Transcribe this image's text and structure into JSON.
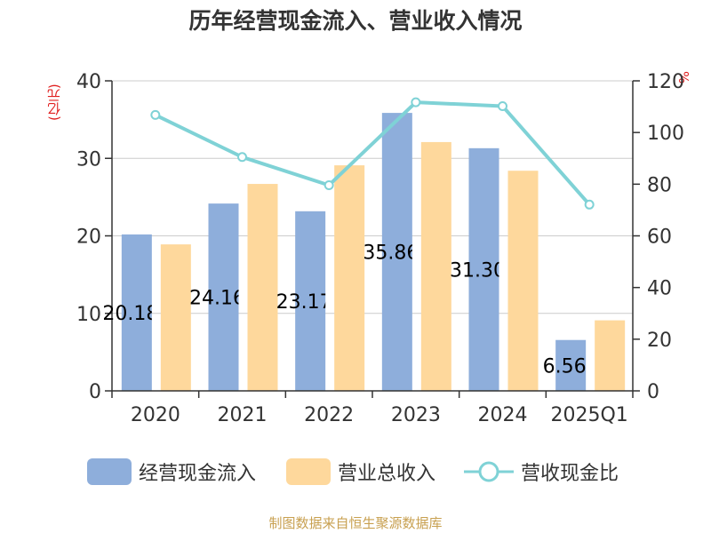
{
  "title": "历年经营现金流入、营业收入情况",
  "left_unit": "(亿元)",
  "right_unit": "%",
  "source": "制图数据来自恒生聚源数据库",
  "colors": {
    "cash_inflow": "#8eaedb",
    "revenue": "#fed89c",
    "ratio": "#7fd2d6",
    "axis": "#333333",
    "grid": "#cccccc"
  },
  "chart_data": {
    "type": "bar",
    "categories": [
      "2020",
      "2021",
      "2022",
      "2023",
      "2024",
      "2025Q1"
    ],
    "y_left": {
      "min": 0,
      "max": 40,
      "ticks": [
        0,
        10,
        20,
        30,
        40
      ]
    },
    "y_right": {
      "min": 0,
      "max": 120,
      "ticks": [
        0,
        20,
        40,
        60,
        80,
        100,
        120
      ]
    },
    "grid": true,
    "legend_position": "bottom",
    "series": [
      {
        "name": "经营现金流入",
        "type": "bar",
        "axis": "left",
        "values": [
          20.184,
          24.169,
          23.172,
          35.863,
          31.308,
          6.564
        ],
        "labels": [
          "20.184",
          "24.169",
          "23.172",
          "35.863",
          "31.308",
          "6.564"
        ]
      },
      {
        "name": "营业总收入",
        "type": "bar",
        "axis": "left",
        "values": [
          18.9,
          26.7,
          29.1,
          32.1,
          28.4,
          9.1
        ]
      },
      {
        "name": "营收现金比",
        "type": "line",
        "axis": "right",
        "values": [
          106.8,
          90.5,
          79.6,
          111.7,
          110.2,
          72.1
        ]
      }
    ]
  }
}
